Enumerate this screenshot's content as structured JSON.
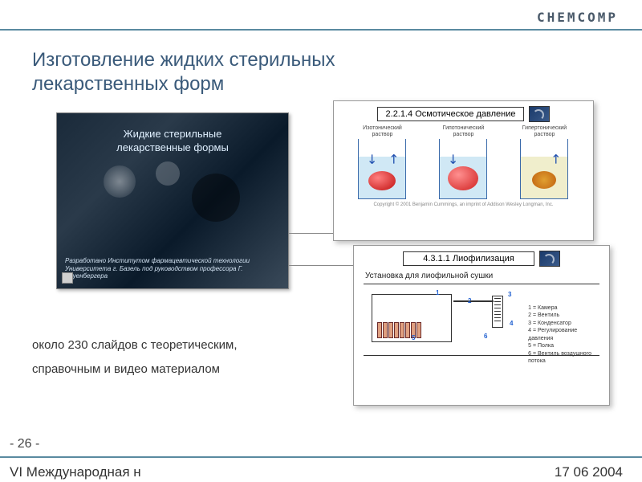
{
  "logo": "CHEMCOMP",
  "title_line1": "Изготовление жидких стерильных",
  "title_line2": "лекарственных форм",
  "main_thumb": {
    "title_line1": "Жидкие стерильные",
    "title_line2": "лекарственные формы",
    "caption": "Разработано Институтом фармацевтической технологии Университета г. Базель под руководством профессора Г. Лоуенбергера"
  },
  "osmo": {
    "header": "2.2.1.4  Осмотическое давление",
    "beakers": [
      {
        "l1": "Изотонический",
        "l2": "раствор",
        "cell": "iso"
      },
      {
        "l1": "Гипотонический",
        "l2": "раствор",
        "cell": "hypo"
      },
      {
        "l1": "Гипертонический",
        "l2": "раствор",
        "cell": "hyper"
      }
    ],
    "copyright": "Copyright © 2001 Benjamin Cummings, an imprint of Addison Wesley Longman, Inc."
  },
  "lyo": {
    "header": "4.3.1.1  Лиофилизация",
    "subtitle": "Установка для лиофильной сушки",
    "legend": [
      "1 = Камера",
      "2 = Вентиль",
      "3 = Конденсатор",
      "4 = Регулирование",
      "      давления",
      "5 = Полка",
      "6 = Вентиль воздушного",
      "      потока"
    ],
    "footer_left": "",
    "footer_right": ""
  },
  "description_line1": "около 230 слайдов с теоретическим,",
  "description_line2": "справочным и видео материалом",
  "page_number": "- 26 -",
  "conference": "VI Международная н",
  "date": "17 06 2004",
  "colors": {
    "accent": "#5a8aa0",
    "title": "#3a5a7a",
    "cell_red": "#c01010",
    "cell_orange": "#c06010"
  }
}
